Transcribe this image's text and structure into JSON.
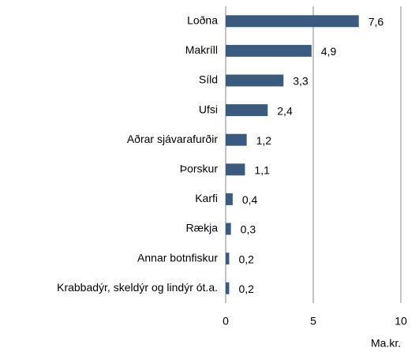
{
  "chart_data": {
    "type": "bar",
    "orientation": "horizontal",
    "categories": [
      "Loðna",
      "Makríll",
      "Síld",
      "Ufsi",
      "Aðrar sjávarafurðir",
      "Þorskur",
      "Karfi",
      "Rækja",
      "Annar botnfiskur",
      "Krabbadýr, skeldýr og lindýr ót.a."
    ],
    "values": [
      7.6,
      4.9,
      3.3,
      2.4,
      1.2,
      1.1,
      0.4,
      0.3,
      0.2,
      0.2
    ],
    "value_labels": [
      "7,6",
      "4,9",
      "3,3",
      "2,4",
      "1,2",
      "1,1",
      "0,4",
      "0,3",
      "0,2",
      "0,2"
    ],
    "color": "#3b5a7f",
    "xlabel": "Ma.kr.",
    "xlim": [
      0,
      10
    ],
    "xticks": [
      0,
      5,
      10
    ],
    "grid": true
  }
}
